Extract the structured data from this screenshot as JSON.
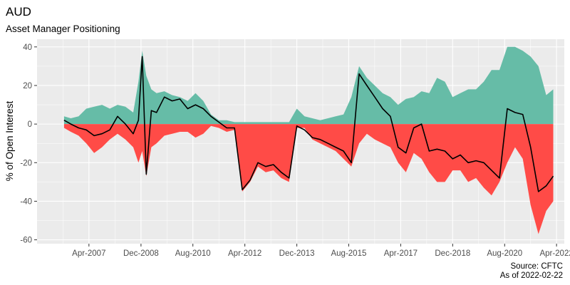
{
  "chart_data": {
    "type": "area",
    "title": "AUD",
    "subtitle": "Asset Manager Positioning",
    "ylabel": "% of Open Interest",
    "xlabel": "",
    "caption_lines": [
      "Source: CFTC",
      "As of 2022-02-22"
    ],
    "xlim": [
      "2005-08-01",
      "2022-07-01"
    ],
    "ylim": [
      -62,
      44
    ],
    "y_ticks": [
      40,
      20,
      0,
      -20,
      -40,
      -60
    ],
    "x_ticks": [
      {
        "date": "2007-04-01",
        "label": "Apr-2007"
      },
      {
        "date": "2008-12-01",
        "label": "Dec-2008"
      },
      {
        "date": "2010-08-01",
        "label": "Aug-2010"
      },
      {
        "date": "2012-04-01",
        "label": "Apr-2012"
      },
      {
        "date": "2013-12-01",
        "label": "Dec-2013"
      },
      {
        "date": "2015-08-01",
        "label": "Aug-2015"
      },
      {
        "date": "2017-04-01",
        "label": "Apr-2017"
      },
      {
        "date": "2018-12-01",
        "label": "Dec-2018"
      },
      {
        "date": "2020-08-01",
        "label": "Aug-2020"
      },
      {
        "date": "2022-04-01",
        "label": "Apr-2022"
      }
    ],
    "grid": true,
    "colors": {
      "long": "#66bca7",
      "short": "#ff4b47",
      "net": "#000000",
      "panel": "#ebebeb",
      "grid": "#ffffff"
    },
    "series": [
      {
        "x": [
          "2006-06-13",
          "2006-09-01",
          "2006-12-01",
          "2007-03-01",
          "2007-06-01",
          "2007-09-01",
          "2007-12-01",
          "2008-03-01",
          "2008-06-01",
          "2008-09-01",
          "2008-11-01",
          "2008-12-15",
          "2009-02-01",
          "2009-04-01",
          "2009-06-01",
          "2009-09-01",
          "2009-12-01",
          "2010-03-01",
          "2010-06-01",
          "2010-09-01",
          "2010-12-01",
          "2011-03-01",
          "2011-06-01",
          "2011-09-01",
          "2011-12-01",
          "2012-03-01",
          "2012-06-01",
          "2012-09-01",
          "2012-12-01",
          "2013-03-01",
          "2013-06-01",
          "2013-09-01",
          "2013-12-01",
          "2014-03-01",
          "2014-06-01",
          "2014-09-01",
          "2014-12-01",
          "2015-03-01",
          "2015-06-01",
          "2015-09-01",
          "2015-12-01",
          "2016-03-01",
          "2016-06-01",
          "2016-09-01",
          "2016-12-01",
          "2017-03-01",
          "2017-06-01",
          "2017-09-01",
          "2017-12-01",
          "2018-03-01",
          "2018-06-01",
          "2018-09-01",
          "2018-12-01",
          "2019-03-01",
          "2019-06-01",
          "2019-09-01",
          "2019-12-01",
          "2020-03-01",
          "2020-06-01",
          "2020-09-01",
          "2020-12-01",
          "2021-03-01",
          "2021-06-01",
          "2021-09-01",
          "2021-12-01",
          "2022-02-22"
        ],
        "long": [
          4,
          3,
          4,
          8,
          9,
          10,
          8,
          10,
          9,
          6,
          22,
          38,
          25,
          18,
          16,
          17,
          15,
          14,
          12,
          16,
          12,
          5,
          2,
          2,
          1,
          1,
          1,
          1,
          1,
          1,
          1,
          1,
          8,
          4,
          3,
          2,
          3,
          4,
          5,
          14,
          30,
          24,
          20,
          16,
          14,
          10,
          13,
          14,
          17,
          16,
          24,
          22,
          14,
          16,
          18,
          18,
          22,
          28,
          28,
          40,
          40,
          38,
          35,
          30,
          15,
          18
        ],
        "short": [
          -2,
          -4,
          -6,
          -10,
          -15,
          -12,
          -8,
          -5,
          -8,
          -12,
          -20,
          -14,
          -27,
          -12,
          -10,
          -6,
          -5,
          -4,
          -4,
          -7,
          -5,
          -1,
          -2,
          -4,
          -3,
          -35,
          -30,
          -22,
          -25,
          -24,
          -28,
          -30,
          -2,
          -2,
          -8,
          -10,
          -12,
          -14,
          -18,
          -22,
          -10,
          -5,
          -8,
          -10,
          -12,
          -20,
          -25,
          -15,
          -18,
          -25,
          -30,
          -30,
          -24,
          -24,
          -30,
          -28,
          -33,
          -37,
          -30,
          -20,
          -12,
          -18,
          -42,
          -57,
          -45,
          -40
        ],
        "net": [
          2,
          0,
          -2,
          -3,
          -6,
          -5,
          -3,
          4,
          0,
          -5,
          2,
          35,
          -26,
          7,
          6,
          14,
          12,
          13,
          8,
          10,
          8,
          4,
          1,
          -2,
          -2,
          -34,
          -29,
          -20,
          -22,
          -21,
          -25,
          -28,
          -1,
          -3,
          -7,
          -8,
          -10,
          -12,
          -14,
          -20,
          26,
          20,
          14,
          8,
          4,
          -12,
          -15,
          -2,
          0,
          -14,
          -13,
          -14,
          -18,
          -16,
          -20,
          -19,
          -20,
          -24,
          -28,
          8,
          6,
          5,
          -12,
          -35,
          -32,
          -27
        ]
      }
    ]
  }
}
